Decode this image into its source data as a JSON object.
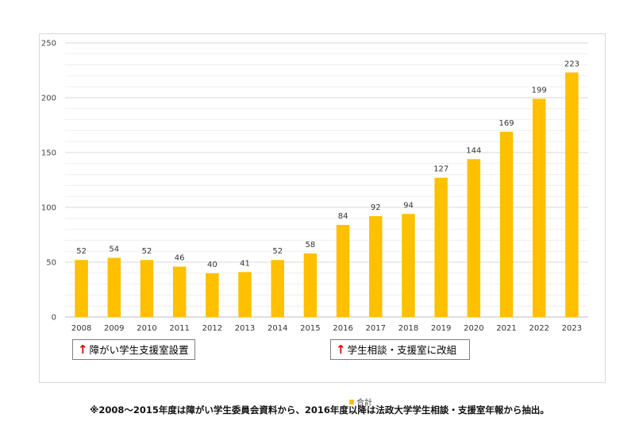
{
  "chart_data": {
    "type": "bar",
    "categories": [
      "2008",
      "2009",
      "2010",
      "2011",
      "2012",
      "2013",
      "2014",
      "2015",
      "2016",
      "2017",
      "2018",
      "2019",
      "2020",
      "2021",
      "2022",
      "2023"
    ],
    "series": [
      {
        "name": "合計",
        "values": [
          52,
          54,
          52,
          46,
          40,
          41,
          52,
          58,
          84,
          92,
          94,
          127,
          144,
          169,
          199,
          223
        ]
      }
    ],
    "ylim": [
      0,
      250
    ],
    "yticks": [
      0,
      50,
      100,
      150,
      200,
      250
    ],
    "bar_color": "#ffc000",
    "grid": true,
    "legend_position": "bottom"
  },
  "annotations": [
    {
      "arrow": "↑",
      "text": "障がい学生支援室設置"
    },
    {
      "arrow": "↑",
      "text": "学生相談・支援室に改組"
    }
  ],
  "footnote": "※2008～2015年度は障がい学生委員会資料から、2016年度以降は法政大学学生相談・支援室年報から抽出。"
}
